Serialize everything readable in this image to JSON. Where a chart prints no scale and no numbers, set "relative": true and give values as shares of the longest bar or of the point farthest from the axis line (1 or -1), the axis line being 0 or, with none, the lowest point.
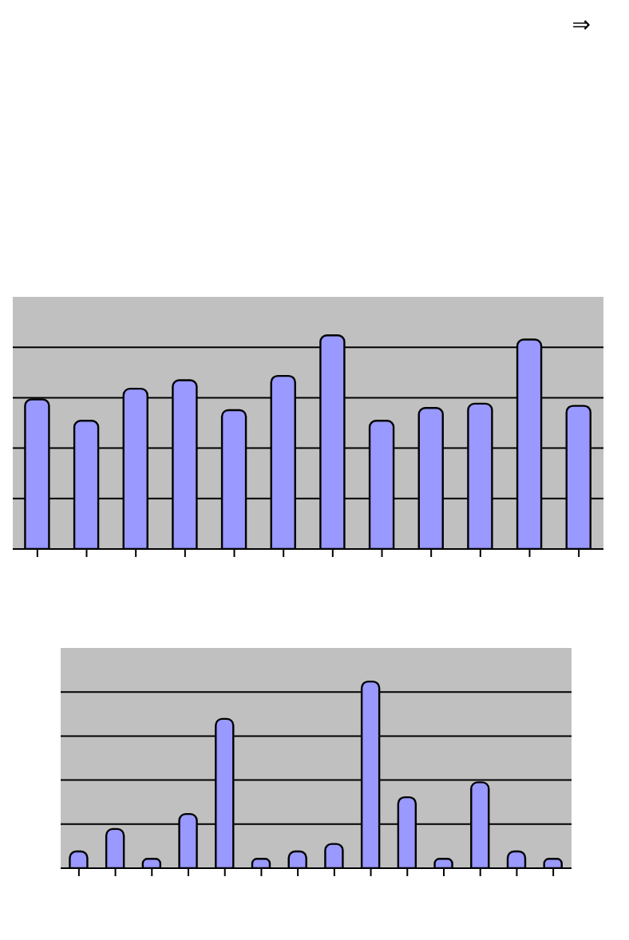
{
  "chart_data": [
    {
      "type": "bar",
      "relative": true,
      "grid": "y",
      "annotations": [
        "⇒"
      ],
      "categories": [
        null,
        null,
        null,
        null,
        null,
        null,
        null,
        null,
        null,
        null,
        null,
        null
      ],
      "values": [
        0.7,
        0.6,
        0.75,
        0.79,
        0.65,
        0.81,
        1,
        0.6,
        0.66,
        0.68,
        0.98,
        0.67
      ],
      "color": "#9999ff"
    },
    {
      "type": "bar",
      "relative": true,
      "grid": "y",
      "categories": [
        null,
        null,
        null,
        null,
        null,
        null,
        null,
        null,
        null,
        null,
        null,
        null,
        null,
        null
      ],
      "values": [
        0.09,
        0.21,
        0.05,
        0.29,
        0.8,
        0.05,
        0.09,
        0.13,
        1,
        0.38,
        0.05,
        0.46,
        0.09,
        0.05
      ],
      "color": "#9999ff"
    }
  ]
}
